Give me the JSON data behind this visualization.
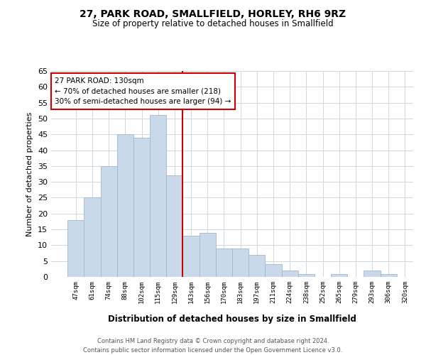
{
  "title": "27, PARK ROAD, SMALLFIELD, HORLEY, RH6 9RZ",
  "subtitle": "Size of property relative to detached houses in Smallfield",
  "xlabel": "Distribution of detached houses by size in Smallfield",
  "ylabel": "Number of detached properties",
  "bar_labels": [
    "47sqm",
    "61sqm",
    "74sqm",
    "88sqm",
    "102sqm",
    "115sqm",
    "129sqm",
    "143sqm",
    "156sqm",
    "170sqm",
    "183sqm",
    "197sqm",
    "211sqm",
    "224sqm",
    "238sqm",
    "252sqm",
    "265sqm",
    "279sqm",
    "293sqm",
    "306sqm",
    "320sqm"
  ],
  "bar_values": [
    18,
    25,
    35,
    45,
    44,
    51,
    32,
    13,
    14,
    9,
    9,
    7,
    4,
    2,
    1,
    0,
    1,
    0,
    2,
    1
  ],
  "bar_color": "#c9d9ea",
  "bar_edge_color": "#a0b8cc",
  "vline_color": "#cc0000",
  "ylim": [
    0,
    65
  ],
  "yticks": [
    0,
    5,
    10,
    15,
    20,
    25,
    30,
    35,
    40,
    45,
    50,
    55,
    60,
    65
  ],
  "annotation_title": "27 PARK ROAD: 130sqm",
  "annotation_line1": "← 70% of detached houses are smaller (218)",
  "annotation_line2": "30% of semi-detached houses are larger (94) →",
  "annotation_box_color": "#ffffff",
  "annotation_box_edge_color": "#cc0000",
  "footer_line1": "Contains HM Land Registry data © Crown copyright and database right 2024.",
  "footer_line2": "Contains public sector information licensed under the Open Government Licence v3.0.",
  "background_color": "#ffffff",
  "grid_color": "#d0d8e0"
}
